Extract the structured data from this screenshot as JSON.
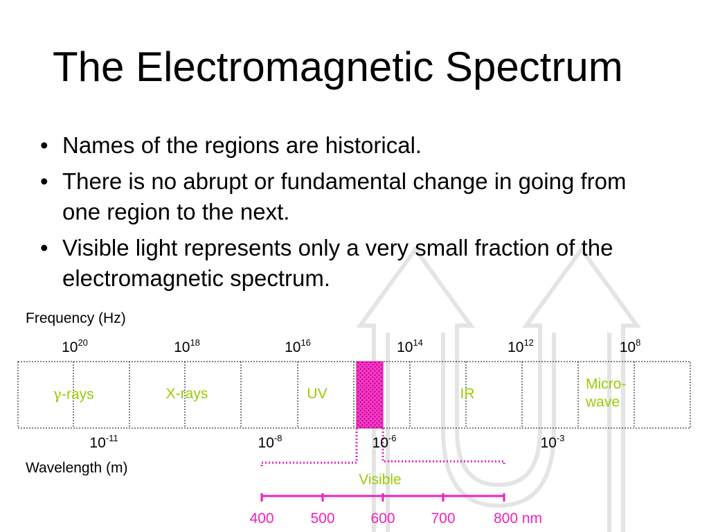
{
  "slide": {
    "title": "The Electromagnetic Spectrum",
    "bullets": [
      "Names of the regions are historical.",
      "There is no abrupt or fundamental change in going from one region to the next.",
      "Visible light represents only a very small fraction of the electromagnetic spectrum."
    ]
  },
  "diagram": {
    "frequency_label": "Frequency (Hz)",
    "wavelength_label": "Wavelength (m)",
    "frequency_ticks": [
      {
        "base": "10",
        "exp": "20"
      },
      {
        "base": "10",
        "exp": "18"
      },
      {
        "base": "10",
        "exp": "16"
      },
      {
        "base": "10",
        "exp": "14"
      },
      {
        "base": "10",
        "exp": "12"
      },
      {
        "base": "10",
        "exp": "8"
      }
    ],
    "wavelength_ticks": [
      {
        "base": "10",
        "exp": "-11"
      },
      {
        "base": "10",
        "exp": "-8"
      },
      {
        "base": "10",
        "exp": "-6"
      },
      {
        "base": "10",
        "exp": "-3"
      }
    ],
    "regions": {
      "gamma": {
        "symbol": "γ",
        "suffix": "-rays"
      },
      "xray": "X-rays",
      "uv": "UV",
      "ir": "IR",
      "microwave_line1": "Micro-",
      "microwave_line2": "wave"
    },
    "visible_label": "Visible",
    "visible_scale": [
      "400",
      "500",
      "600",
      "700",
      "800 nm"
    ],
    "colors": {
      "region_text": "#99cc00",
      "visible_band": "#ff33cc",
      "visible_scale": "#ee22bb",
      "watermark": "#e6e6e6"
    }
  }
}
